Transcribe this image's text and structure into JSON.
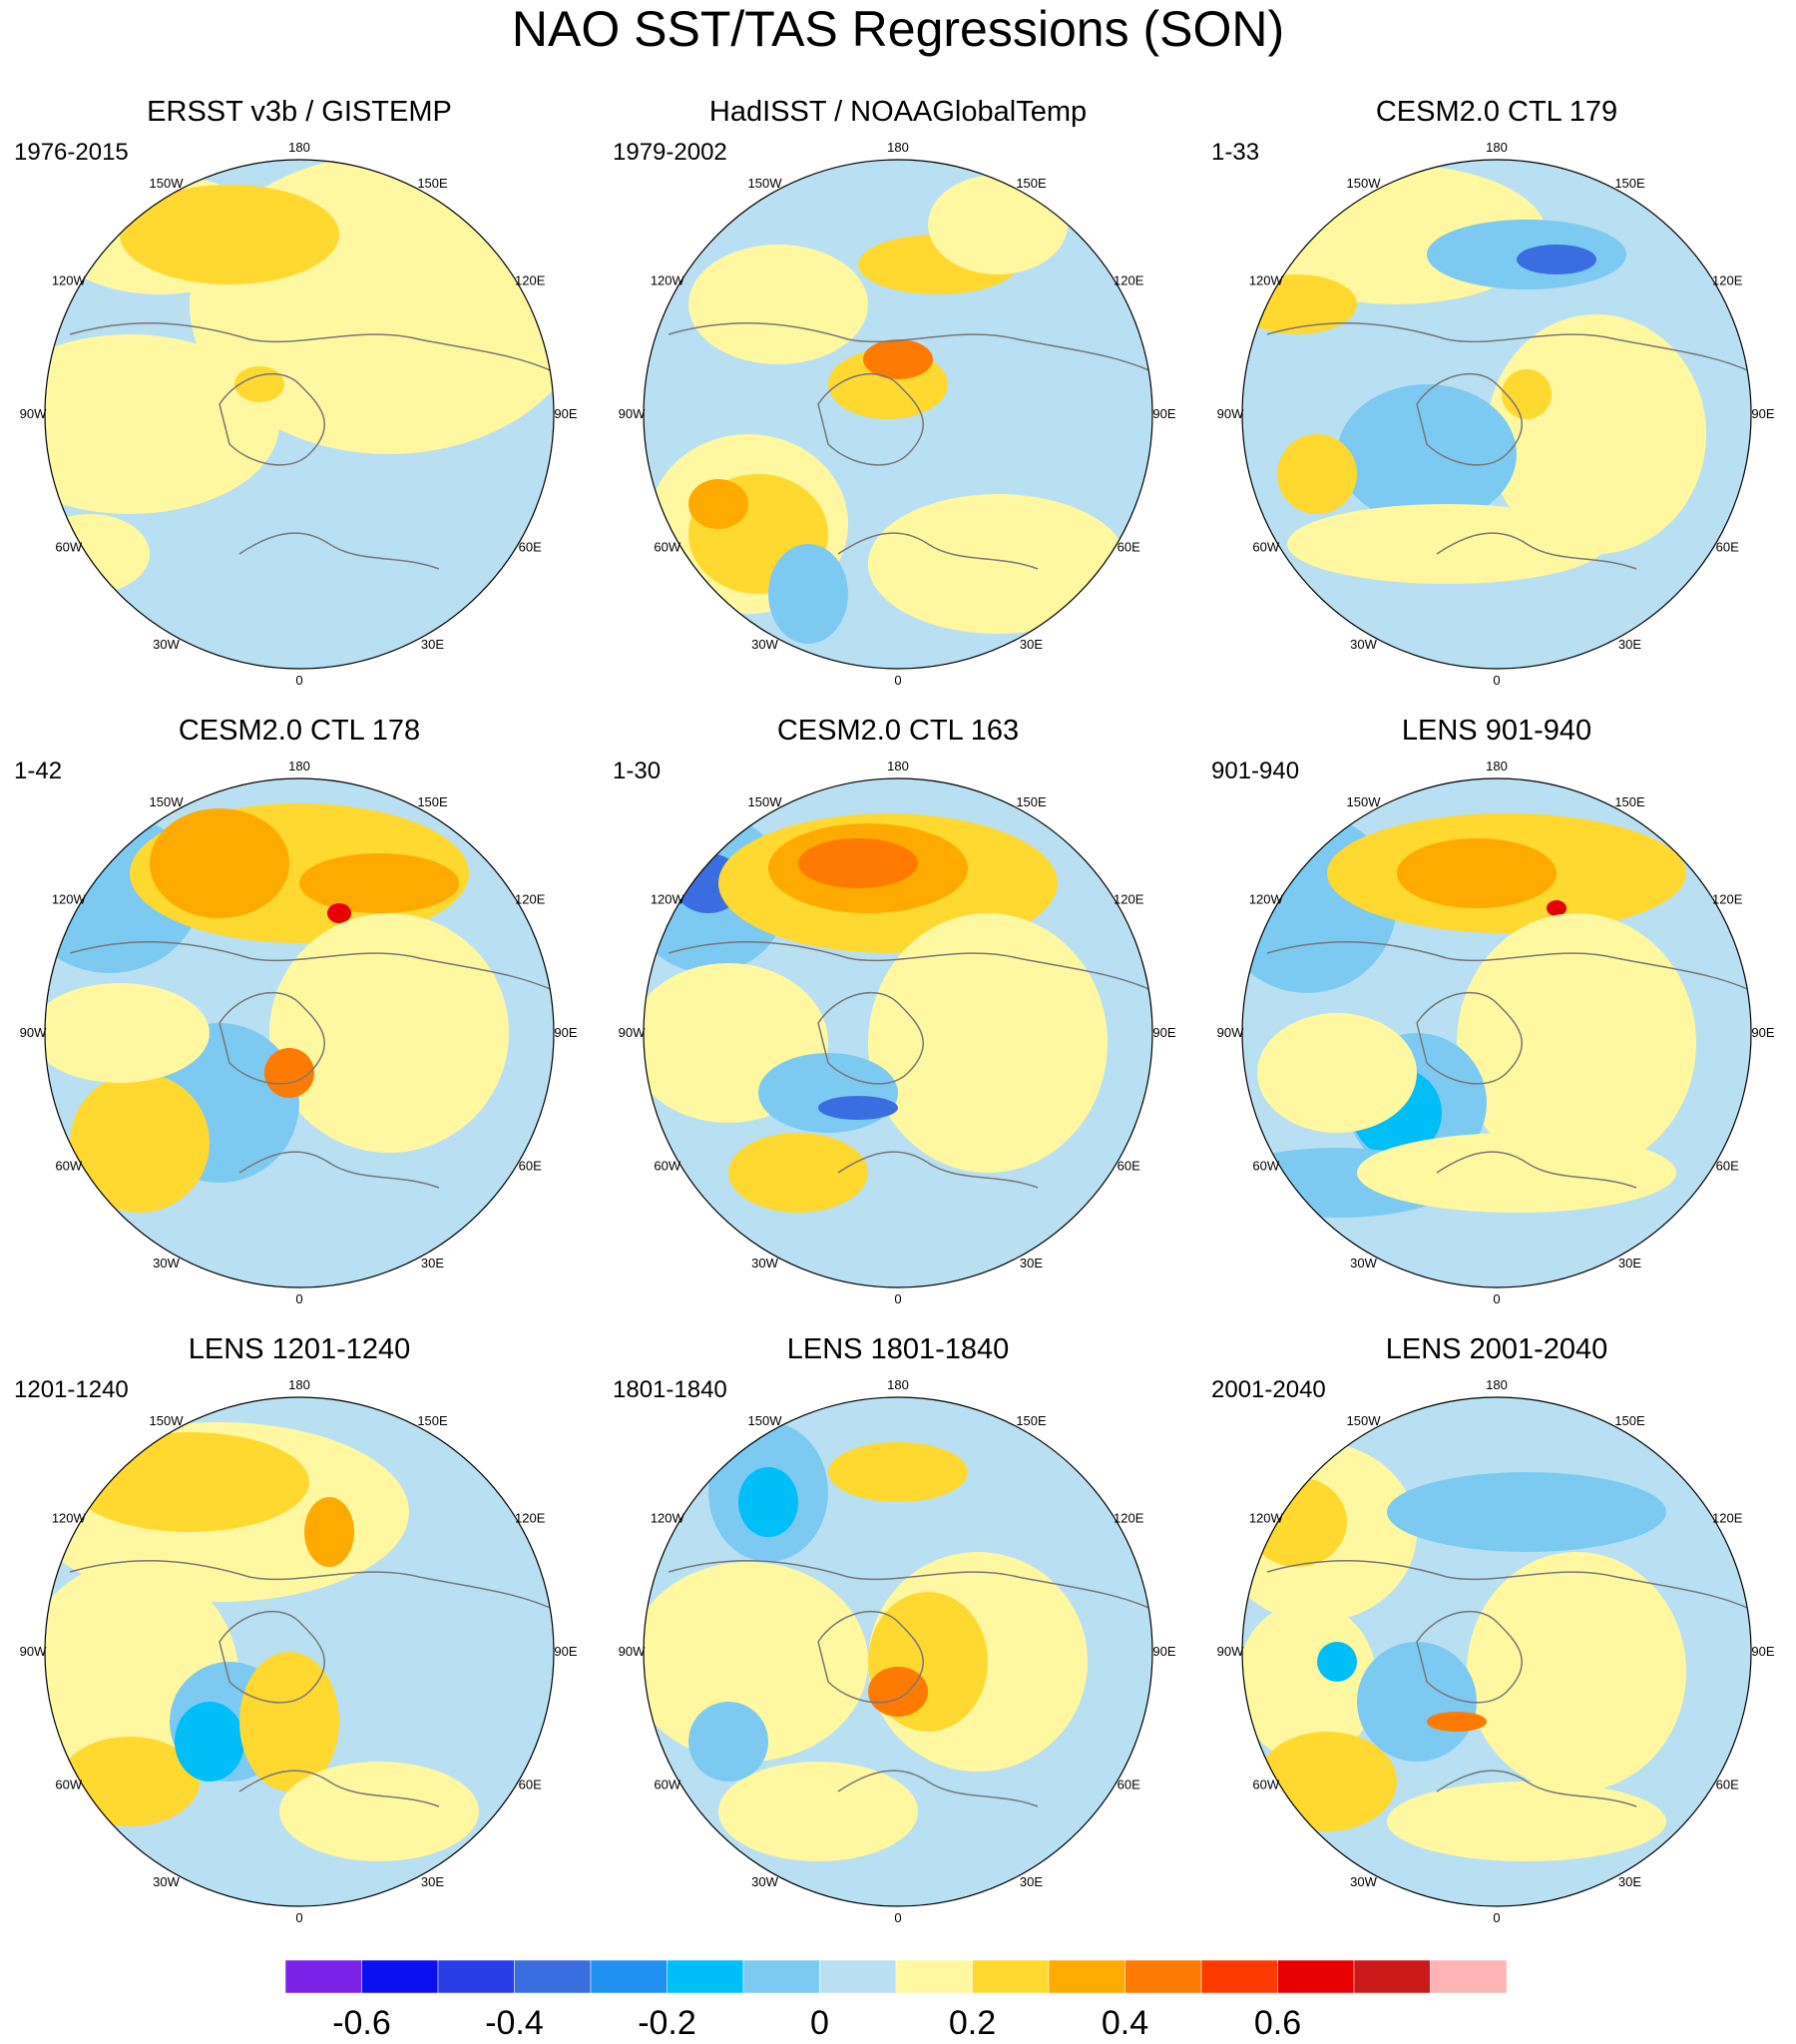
{
  "title": "NAO SST/TAS Regressions (SON)",
  "lon_labels": [
    "180",
    "150E",
    "120E",
    "90E",
    "60E",
    "30E",
    "0",
    "30W",
    "60W",
    "90W",
    "120W",
    "150W"
  ],
  "panels": [
    {
      "title": "ERSST v3b / GISTEMP",
      "period": "1976-2015"
    },
    {
      "title": "HadISST / NOAAGlobalTemp",
      "period": "1979-2002"
    },
    {
      "title": "CESM2.0 CTL 179",
      "period": "1-33"
    },
    {
      "title": "CESM2.0 CTL 178",
      "period": "1-42"
    },
    {
      "title": "CESM2.0 CTL 163",
      "period": "1-30"
    },
    {
      "title": "LENS 901-940",
      "period": "901-940"
    },
    {
      "title": "LENS 1201-1240",
      "period": "1201-1240"
    },
    {
      "title": "LENS 1801-1840",
      "period": "1801-1840"
    },
    {
      "title": "LENS 2001-2040",
      "period": "2001-2040"
    }
  ],
  "colorbar": {
    "colors": [
      "#7b22e8",
      "#0b10f0",
      "#2a3ee8",
      "#3a6ee0",
      "#2090f2",
      "#00bef8",
      "#7ccaf2",
      "#b8e0f2",
      "#fff8a0",
      "#ffd830",
      "#ffaa00",
      "#ff7a00",
      "#ff3a00",
      "#e60000",
      "#cc1a1a",
      "#ffb4b4"
    ],
    "tick_values": [
      -0.6,
      -0.4,
      -0.2,
      0,
      0.2,
      0.4,
      0.6
    ],
    "tick_labels": [
      "-0.6",
      "-0.4",
      "-0.2",
      "0",
      "0.2",
      "0.4",
      "0.6"
    ],
    "level_step": 0.1
  },
  "palette": {
    "light_blue": "#b8e0f2",
    "mid_blue": "#7ccaf2",
    "cyan_blue": "#00bef8",
    "blue": "#3a6ee0",
    "light_yellow": "#fff8a0",
    "yellow": "#ffd830",
    "orange": "#ffaa00",
    "dark_orange": "#ff7a00",
    "red": "#e60000"
  }
}
